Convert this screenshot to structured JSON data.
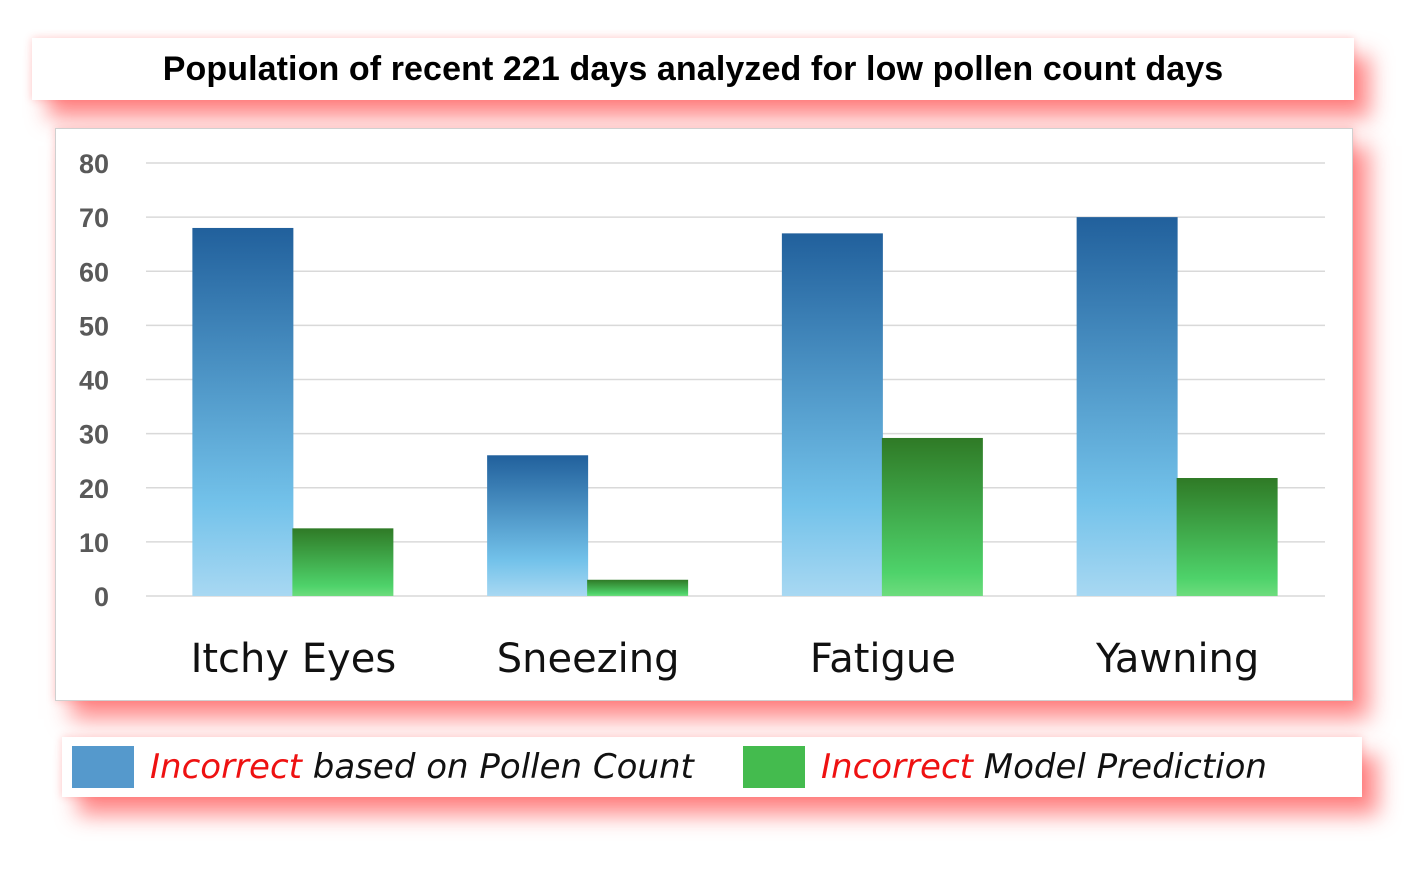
{
  "colors": {
    "series1_top": "#21609c",
    "series1_mid": "#73c2ea",
    "series1_bottom": "#a8d8f2",
    "series2_top": "#2f7a26",
    "series2_bottom": "#4ed26a",
    "legend_swatch1": "#5599cc",
    "legend_swatch2": "#44bb4e",
    "legend_emphasis": "#ee1111",
    "grid": "#d9d9d9"
  },
  "legend": [
    {
      "emphasis": "Incorrect",
      "text": " based on Pollen Count"
    },
    {
      "emphasis": "Incorrect",
      "text": " Model Prediction"
    }
  ],
  "chart_data": {
    "type": "bar",
    "title": "Population of recent 221 days analyzed for low pollen count days",
    "xlabel": "",
    "ylabel": "",
    "categories": [
      "Itchy Eyes",
      "Sneezing",
      "Fatigue",
      "Yawning"
    ],
    "series": [
      {
        "name": "Incorrect based on Pollen Count",
        "values": [
          68,
          26,
          67,
          70
        ]
      },
      {
        "name": "Incorrect Model Prediction",
        "values": [
          12.5,
          3,
          29.2,
          21.8
        ]
      }
    ],
    "ylim": [
      0,
      80
    ],
    "yticks": [
      "0",
      "10",
      "20",
      "30",
      "40",
      "50",
      "60",
      "70",
      "80"
    ],
    "grid": true,
    "legend_position": "bottom"
  }
}
